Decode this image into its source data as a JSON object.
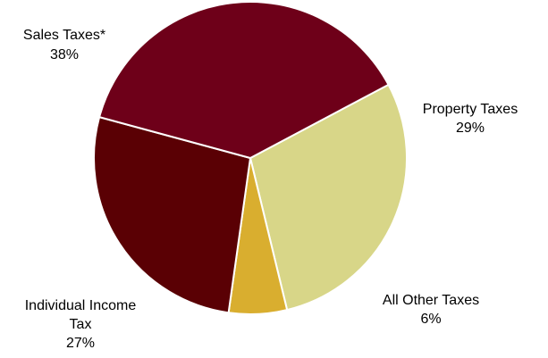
{
  "chart_data": {
    "type": "pie",
    "title": "",
    "slices": [
      {
        "name": "Property Taxes",
        "value": 29,
        "label": "29%",
        "color": "#D8D688"
      },
      {
        "name": "All Other Taxes",
        "value": 6,
        "label": "6%",
        "color": "#D9AE2F"
      },
      {
        "name": "Individual Income Tax",
        "label_lines": [
          "Individual Income",
          "Tax"
        ],
        "value": 27,
        "label": "27%",
        "color": "#5A0004"
      },
      {
        "name": "Sales Taxes*",
        "value": 38,
        "label": "38%",
        "color": "#6E0019"
      }
    ],
    "legend": "none",
    "slice_border_color": "#FFFFFF"
  }
}
